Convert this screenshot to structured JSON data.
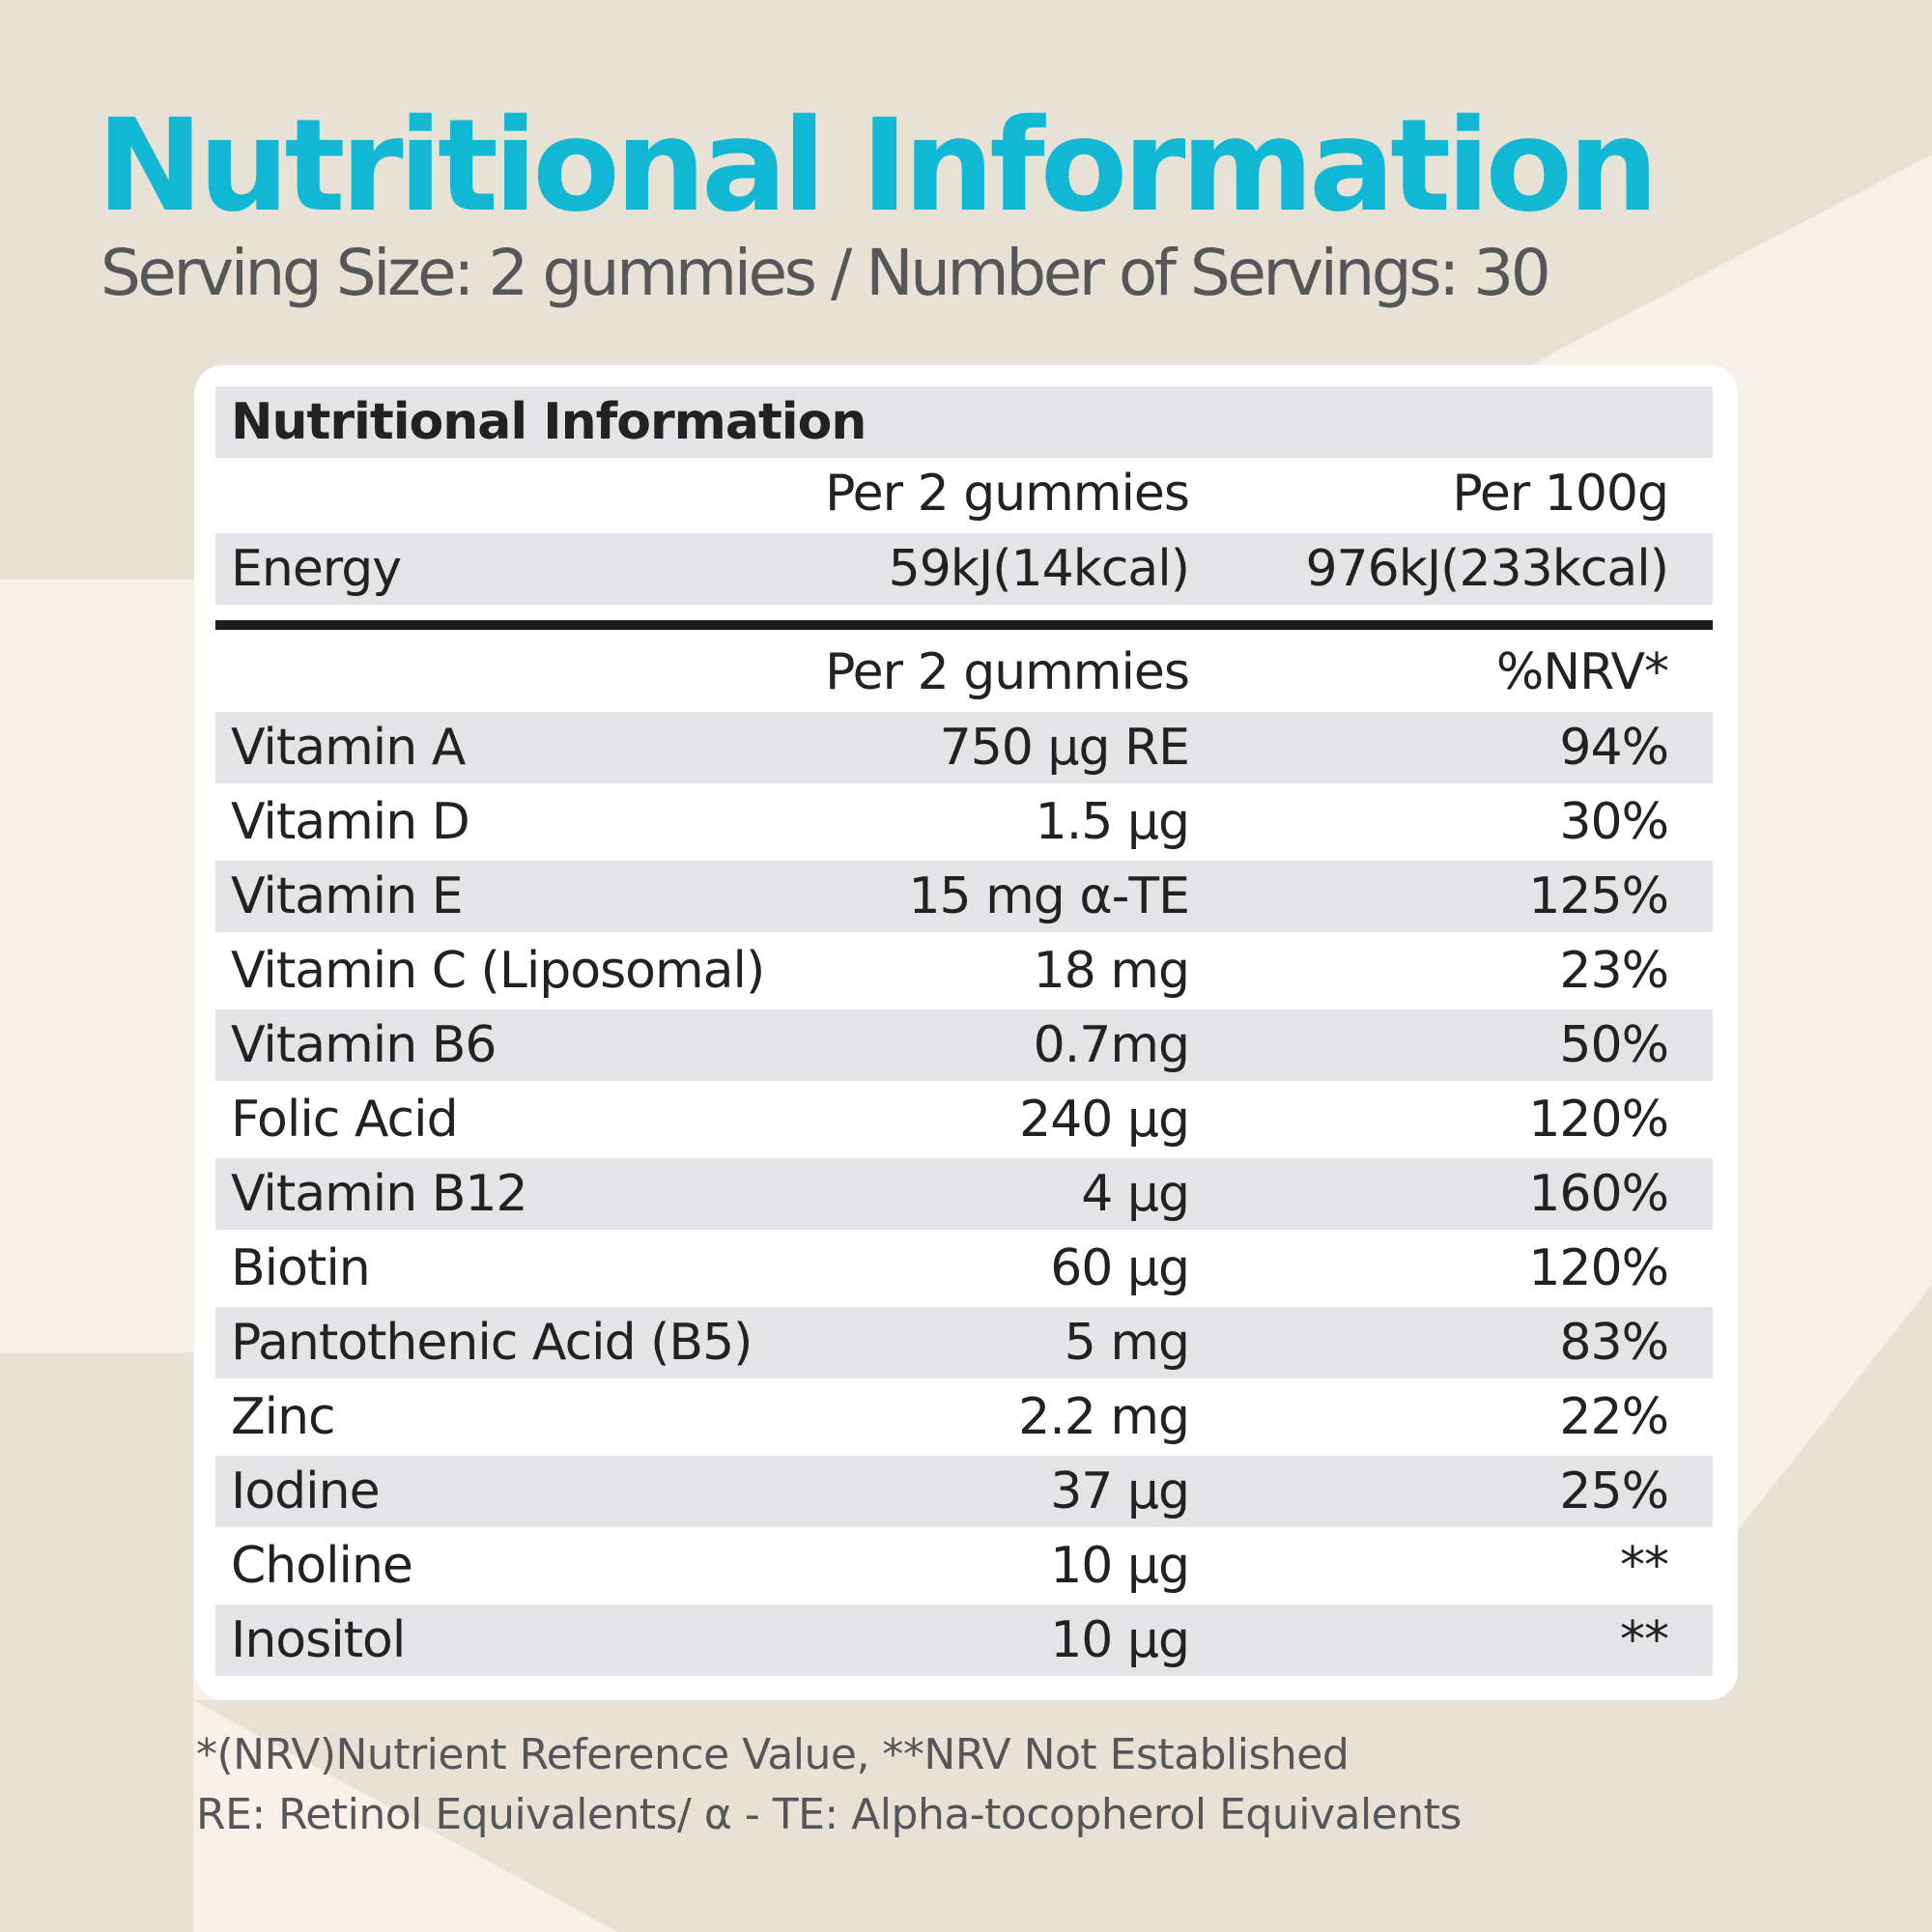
{
  "colors": {
    "background": "#f7f0e6",
    "background_shape": "#e8e1d6",
    "title": "#12b8d3",
    "subtitle": "#565759",
    "row_shade": "#e4e4e6",
    "text": "#222222",
    "footnote": "#55565a"
  },
  "header": {
    "title": "Nutritional Information",
    "subtitle": "Serving Size: 2 gummies  / Number of Servings: 30"
  },
  "table": {
    "title": "Nutritional Information",
    "energy_header": {
      "per_serving": "Per 2 gummies",
      "per_100g": "Per 100g"
    },
    "energy": {
      "name": "Energy",
      "per_serving": "59kJ(14kcal)",
      "per_100g": "976kJ(233kcal)"
    },
    "nutrient_header": {
      "per_serving": "Per 2 gummies",
      "nrv": "%NRV*"
    },
    "nutrients": [
      {
        "name": "Vitamin A",
        "amount": "750 µg RE",
        "nrv": "94%"
      },
      {
        "name": "Vitamin D",
        "amount": "1.5 µg",
        "nrv": "30%"
      },
      {
        "name": "Vitamin E",
        "amount": "15 mg α-TE",
        "nrv": "125%"
      },
      {
        "name": "Vitamin C (Liposomal)",
        "amount": "18 mg",
        "nrv": "23%"
      },
      {
        "name": "Vitamin B6",
        "amount": "0.7mg",
        "nrv": "50%"
      },
      {
        "name": "Folic Acid",
        "amount": "240 µg",
        "nrv": "120%"
      },
      {
        "name": "Vitamin B12",
        "amount": "4 µg",
        "nrv": "160%"
      },
      {
        "name": "Biotin",
        "amount": "60 µg",
        "nrv": "120%"
      },
      {
        "name": "Pantothenic Acid (B5)",
        "amount": "5 mg",
        "nrv": "83%"
      },
      {
        "name": "Zinc",
        "amount": "2.2 mg",
        "nrv": "22%"
      },
      {
        "name": "Iodine",
        "amount": "37 µg",
        "nrv": "25%"
      },
      {
        "name": "Choline",
        "amount": "10 µg",
        "nrv": "**"
      },
      {
        "name": "Inositol",
        "amount": "10 µg",
        "nrv": "**"
      }
    ]
  },
  "footnotes": {
    "line1": "*(NRV)Nutrient Reference Value, **NRV Not Established",
    "line2": "RE: Retinol Equivalents/ α - TE: Alpha-tocopherol Equivalents"
  }
}
